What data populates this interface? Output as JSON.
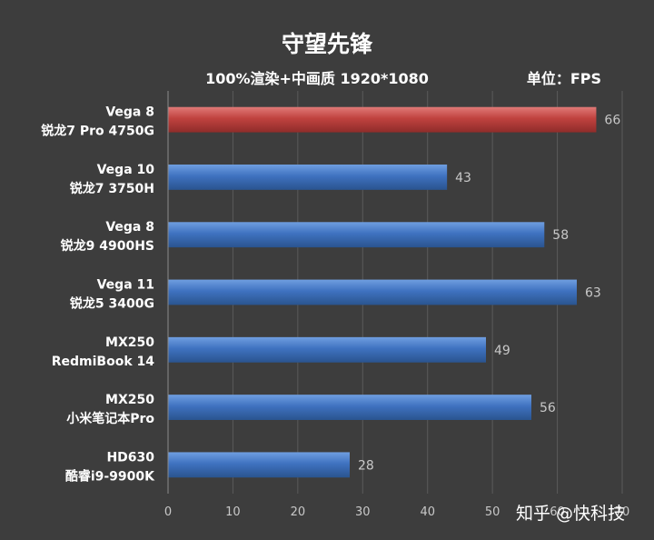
{
  "chart_data": {
    "type": "bar",
    "orientation": "horizontal",
    "title": "守望先锋",
    "subtitle": "100%渲染+中画质 1920*1080",
    "unit_label": "单位：FPS",
    "categories": [
      [
        "Vega 8",
        "锐龙7 Pro 4750G"
      ],
      [
        "Vega 10",
        "锐龙7 3750H"
      ],
      [
        "Vega 8",
        "锐龙9 4900HS"
      ],
      [
        "Vega 11",
        "锐龙5 3400G"
      ],
      [
        "MX250",
        "RedmiBook 14"
      ],
      [
        "MX250",
        "小米笔记本Pro"
      ],
      [
        "HD630",
        "酷睿i9-9900K"
      ]
    ],
    "values": [
      66,
      43,
      58,
      63,
      49,
      56,
      28
    ],
    "xlim": [
      0,
      70
    ],
    "xticks": [
      0,
      10,
      20,
      30,
      40,
      50,
      60,
      70
    ],
    "grid": true,
    "highlight_index": 0,
    "colors": {
      "background": "#3d3d3d",
      "bar_default": "#3f72c0",
      "bar_highlight": "#c0423f",
      "grid": "#5a5a5a",
      "axis": "#8a8a8a"
    }
  },
  "watermark": "知乎 @快科技"
}
